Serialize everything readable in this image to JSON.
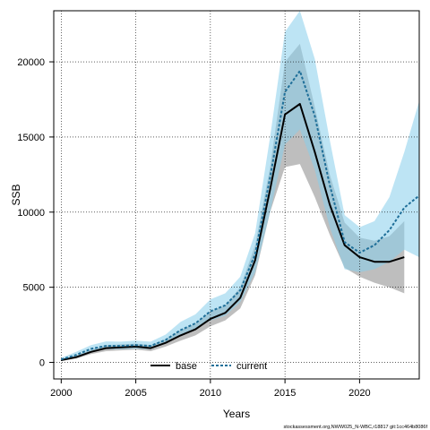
{
  "chart_data": {
    "type": "line",
    "xlabel": "Years",
    "ylabel": "SSB",
    "xlim": [
      1999.5,
      2024
    ],
    "ylim": [
      -1100,
      23400
    ],
    "x_ticks": [
      2000,
      2005,
      2010,
      2015,
      2020
    ],
    "y_ticks": [
      0,
      5000,
      10000,
      15000,
      20000
    ],
    "x_tick_labels": [
      "2000",
      "2005",
      "2010",
      "2015",
      "2020"
    ],
    "y_tick_labels": [
      "0",
      "5000",
      "10000",
      "15000",
      "20000"
    ],
    "grid": true,
    "legend_position": "bottom-center",
    "series": [
      {
        "name": "base",
        "color": "#000000",
        "band_color": "#b3b3b3",
        "line_style": "solid",
        "x": [
          2000,
          2001,
          2002,
          2003,
          2004,
          2005,
          2006,
          2007,
          2008,
          2009,
          2010,
          2011,
          2012,
          2013,
          2014,
          2015,
          2016,
          2017,
          2018,
          2019,
          2020,
          2021,
          2022,
          2023
        ],
        "values": [
          150,
          350,
          700,
          950,
          1000,
          1050,
          950,
          1300,
          1800,
          2200,
          2900,
          3300,
          4300,
          6800,
          11500,
          16500,
          17200,
          14000,
          10500,
          7800,
          7000,
          6700,
          6700,
          7000
        ],
        "lower": [
          100,
          250,
          550,
          750,
          800,
          850,
          750,
          1050,
          1450,
          1800,
          2400,
          2800,
          3600,
          5800,
          10000,
          13000,
          13200,
          11000,
          8500,
          6300,
          5700,
          5300,
          5000,
          4600
        ],
        "upper": [
          200,
          450,
          850,
          1150,
          1200,
          1250,
          1150,
          1550,
          2150,
          2600,
          3400,
          3800,
          5000,
          7800,
          13000,
          20000,
          21200,
          17000,
          12500,
          9300,
          8300,
          8100,
          8400,
          9400
        ]
      },
      {
        "name": "current",
        "color": "#1f6f99",
        "band_color": "#87ceeb",
        "line_style": "dashed",
        "x": [
          2000,
          2001,
          2002,
          2003,
          2004,
          2005,
          2006,
          2007,
          2008,
          2009,
          2010,
          2011,
          2012,
          2013,
          2014,
          2015,
          2016,
          2017,
          2018,
          2019,
          2020,
          2021,
          2022,
          2023,
          2024
        ],
        "values": [
          200,
          500,
          900,
          1100,
          1100,
          1150,
          1100,
          1500,
          2150,
          2600,
          3400,
          3800,
          4800,
          7200,
          12300,
          18000,
          19400,
          16400,
          11800,
          8000,
          7300,
          7800,
          8800,
          10300,
          11100
        ],
        "lower": [
          120,
          350,
          700,
          880,
          880,
          920,
          880,
          1250,
          1800,
          2200,
          2800,
          3100,
          4000,
          6000,
          10000,
          14500,
          15500,
          12800,
          9000,
          6200,
          6000,
          6200,
          6700,
          7500,
          7000
        ],
        "upper": [
          300,
          700,
          1150,
          1400,
          1380,
          1450,
          1380,
          1850,
          2700,
          3200,
          4200,
          4600,
          5700,
          8600,
          15000,
          22000,
          23400,
          20200,
          14800,
          9800,
          9000,
          9400,
          11000,
          14000,
          17400
        ]
      }
    ],
    "footnote": "stockassessment.org,NWW025_N-WBC,r18817 git:1cc464b8086f"
  }
}
